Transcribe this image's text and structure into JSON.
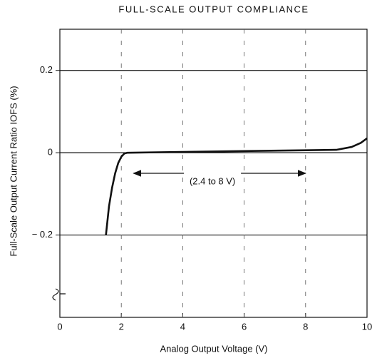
{
  "chart_data": {
    "type": "line",
    "title": "FULL-SCALE OUTPUT COMPLIANCE",
    "x_label": "Analog Output Voltage (V)",
    "y_label": "Full-Scale Output Current Ratio IOFS (%)",
    "x": [
      1.5,
      1.6,
      1.7,
      1.8,
      1.9,
      2.0,
      2.1,
      2.2,
      4,
      6,
      8,
      9,
      9.5,
      9.8,
      10
    ],
    "series": [
      {
        "name": "IOFS",
        "color": "#111111",
        "values": [
          -0.2,
          -0.13,
          -0.085,
          -0.05,
          -0.025,
          -0.01,
          -0.002,
          0,
          0.002,
          0.004,
          0.006,
          0.007,
          0.014,
          0.024,
          0.035
        ]
      }
    ],
    "xlim": [
      0,
      10
    ],
    "xticks": [
      0,
      2,
      4,
      6,
      8,
      10
    ],
    "ylim": [
      -0.4,
      0.3
    ],
    "yticks": [
      0.2,
      0,
      {
        "value": -0.2,
        "label": "− 0.2"
      }
    ],
    "grid": true,
    "annotations": [
      {
        "text": "(2.4 to 8 V)",
        "x": [
          2.4,
          8
        ],
        "y": -0.05
      }
    ]
  }
}
